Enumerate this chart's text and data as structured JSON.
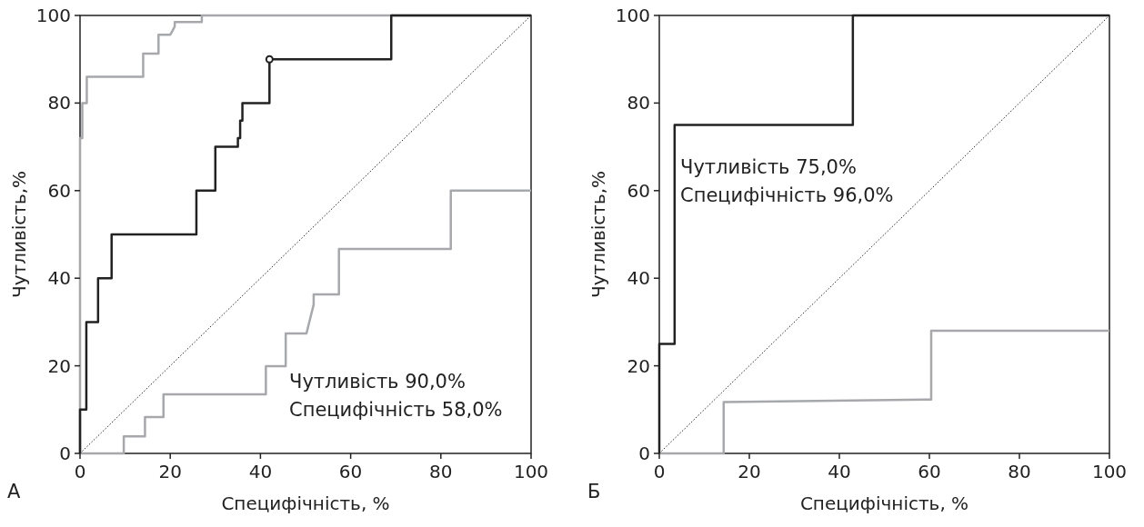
{
  "chart_data": [
    {
      "type": "line",
      "xlabel": "Специфічність, %",
      "ylabel": "Чутливість,%",
      "xlim": [
        0,
        100
      ],
      "ylim": [
        0,
        100
      ],
      "xticks": [
        0,
        20,
        40,
        60,
        80,
        100
      ],
      "yticks": [
        0,
        20,
        40,
        60,
        80,
        100
      ],
      "grid": false,
      "annotations": [
        "А",
        "Чутливість 90,0%",
        "Специфічність 58,0%"
      ],
      "series": [
        {
          "type": "line",
          "line_style": "dotted",
          "color": "#222222",
          "x": [
            0,
            100
          ],
          "values": [
            0,
            100
          ]
        },
        {
          "type": "line",
          "color": "#a6a8ab",
          "x": [
            0,
            0,
            0.5,
            0.5,
            1.5,
            1.5,
            14,
            14,
            17.4,
            17.4,
            20,
            20.5,
            20.5,
            21,
            21,
            27,
            27,
            100
          ],
          "values": [
            0,
            72,
            72,
            80,
            80,
            86,
            86,
            91.3,
            91.3,
            95.6,
            95.6,
            96.5,
            96.5,
            97.5,
            98.5,
            98.5,
            100,
            100
          ]
        },
        {
          "type": "line",
          "color": "#a6a8ab",
          "x": [
            0,
            9.7,
            9.7,
            14.4,
            14.4,
            18.5,
            18.5,
            41.2,
            41.2,
            45.6,
            45.6,
            50.2,
            51.8,
            51.8,
            57.4,
            57.4,
            82.2,
            82.2,
            100
          ],
          "values": [
            0,
            0,
            3.9,
            3.9,
            8.3,
            8.3,
            13.5,
            13.5,
            19.9,
            19.9,
            27.4,
            27.4,
            34,
            36.3,
            36.3,
            46.7,
            46.7,
            60,
            60
          ]
        },
        {
          "type": "line",
          "color": "#222222",
          "x": [
            0,
            0,
            1.4,
            1.4,
            4,
            4,
            7,
            7,
            25.8,
            25.8,
            30,
            30,
            35,
            35,
            35.5,
            35.5,
            36,
            36,
            42,
            42,
            69,
            69,
            100
          ],
          "values": [
            0,
            10,
            10,
            30,
            30,
            40,
            40,
            50,
            50,
            60,
            60,
            70,
            70,
            72,
            72,
            76,
            76,
            80,
            80,
            90,
            90,
            100,
            100
          ]
        },
        {
          "type": "scatter",
          "marker": "circle",
          "color": "#222222",
          "x": [
            42
          ],
          "values": [
            90
          ]
        }
      ]
    },
    {
      "type": "line",
      "xlabel": "Специфічність, %",
      "ylabel": "Чутливість,%",
      "xlim": [
        0,
        100
      ],
      "ylim": [
        0,
        100
      ],
      "xticks": [
        0,
        20,
        40,
        60,
        80,
        100
      ],
      "yticks": [
        0,
        20,
        40,
        60,
        80,
        100
      ],
      "grid": false,
      "annotations": [
        "Б",
        "Чутливість 75,0%",
        "Специфічність 96,0%"
      ],
      "series": [
        {
          "type": "line",
          "line_style": "dotted",
          "color": "#222222",
          "x": [
            0,
            100
          ],
          "values": [
            0,
            100
          ]
        },
        {
          "type": "line",
          "color": "#a6a8ab",
          "x": [
            0,
            14.3,
            14.3,
            60.4,
            60.4,
            100
          ],
          "values": [
            0,
            0,
            11.7,
            12.3,
            28,
            28
          ]
        },
        {
          "type": "line",
          "color": "#222222",
          "x": [
            0,
            0,
            3.4,
            3.4,
            43,
            43,
            100
          ],
          "values": [
            0,
            25,
            25,
            75,
            75,
            100,
            100
          ]
        }
      ]
    }
  ]
}
